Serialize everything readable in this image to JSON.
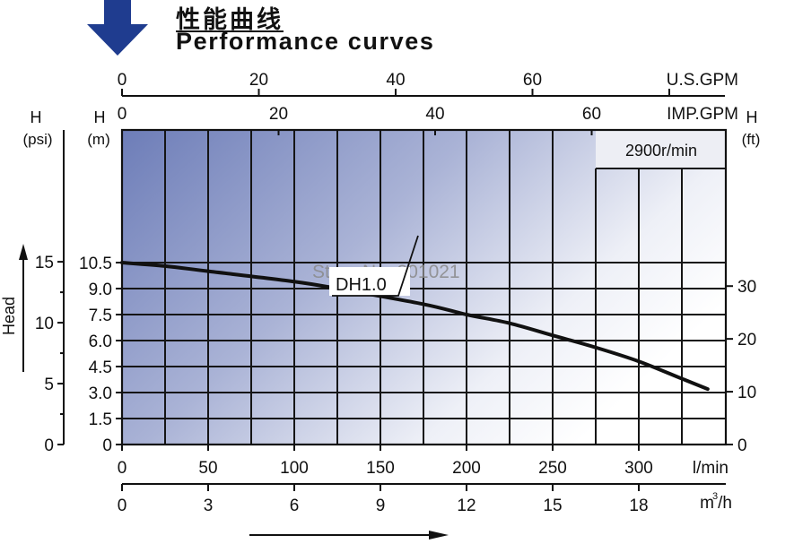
{
  "header": {
    "title_cn": "性能曲线",
    "title_en": "Performance curves",
    "arrow_icon": "down-arrow-icon",
    "arrow_color": "#1e3a8a"
  },
  "watermark": "Store No: 201021",
  "chart_data": {
    "type": "line",
    "title": "Performance curves",
    "subtitle": "2900r/min",
    "xlabel": "l/min",
    "ylabel": "Head",
    "x_axes": [
      {
        "unit": "U.S.GPM",
        "ticks": [
          "0",
          "20",
          "40",
          "60"
        ],
        "position": "top-outer"
      },
      {
        "unit": "IMP.GPM",
        "ticks": [
          "0",
          "20",
          "40",
          "60"
        ],
        "position": "top-inner"
      },
      {
        "unit": "l/min",
        "ticks": [
          "0",
          "50",
          "100",
          "150",
          "200",
          "250",
          "300"
        ],
        "position": "bottom-inner"
      },
      {
        "unit": "m³/h",
        "ticks": [
          "0",
          "3",
          "6",
          "9",
          "12",
          "15",
          "18"
        ],
        "position": "bottom-outer"
      }
    ],
    "y_axes": [
      {
        "label": "H",
        "unit": "(psi)",
        "ticks": [
          "0",
          "5",
          "10",
          "15"
        ],
        "position": "left-outer"
      },
      {
        "label": "H",
        "unit": "(m)",
        "ticks": [
          "0",
          "1.5",
          "3.0",
          "4.5",
          "6.0",
          "7.5",
          "9.0",
          "10.5"
        ],
        "position": "left-inner"
      },
      {
        "label": "H",
        "unit": "(ft)",
        "ticks": [
          "0",
          "10",
          "20",
          "30"
        ],
        "position": "right"
      }
    ],
    "xlim": [
      0,
      350
    ],
    "ylim": [
      0,
      12
    ],
    "grid": true,
    "grid_x_step": 25,
    "grid_y_step": 1.5,
    "series": [
      {
        "name": "DH1.0",
        "x": [
          0,
          25,
          50,
          100,
          125,
          175,
          200,
          225,
          250,
          275,
          300,
          325,
          340
        ],
        "values": [
          10.5,
          10.3,
          10.0,
          9.4,
          9.0,
          8.1,
          7.5,
          7.0,
          6.3,
          5.6,
          4.8,
          3.8,
          3.2
        ]
      }
    ],
    "annotations": [
      {
        "text": "DH1.0",
        "target_x": 172,
        "target_y": 8.1
      },
      {
        "text": "2900r/min",
        "position": "top-right"
      }
    ],
    "axis_arrows": {
      "y_label": "Head",
      "x_arrow": true
    }
  },
  "colors": {
    "gradient_dark": "#6f7fb8",
    "gradient_light": "#ffffff",
    "curve": "#111111",
    "grid": "#111111"
  }
}
